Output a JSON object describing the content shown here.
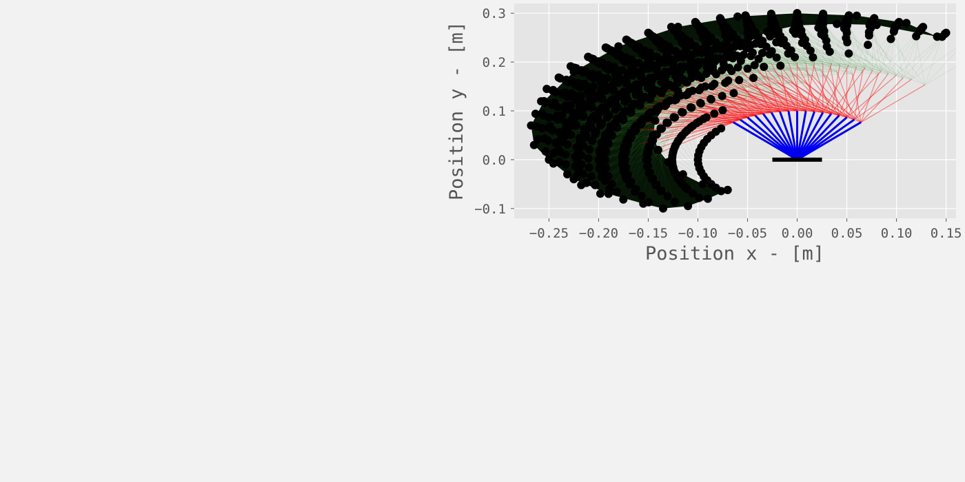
{
  "chart_data": {
    "type": "scatter",
    "title": "",
    "xlabel": "Position x - [m]",
    "ylabel": "Position y - [m]",
    "xlim": [
      -0.285,
      0.16
    ],
    "ylim": [
      -0.12,
      0.32
    ],
    "xticks": [
      -0.25,
      -0.2,
      -0.15,
      -0.1,
      -0.05,
      0.0,
      0.05,
      0.1,
      0.15
    ],
    "xtick_labels": [
      "−0.25",
      "−0.20",
      "−0.15",
      "−0.10",
      "−0.05",
      "0.00",
      "0.05",
      "0.10",
      "0.15"
    ],
    "yticks": [
      -0.1,
      0.0,
      0.1,
      0.2,
      0.3
    ],
    "ytick_labels": [
      "−0.1",
      "0.0",
      "0.1",
      "0.2",
      "0.3"
    ],
    "grid": true,
    "legend": "none",
    "colors": {
      "background": "#e5e5e5",
      "grid": "#ffffff",
      "segment1": "#0000ee",
      "segment2": "#ff0000",
      "segment3": "#2e8b2e",
      "endpoints": "#000000",
      "base": "#000000"
    },
    "robot": {
      "base_x": [
        -0.025,
        0.025
      ],
      "base_y": 0.0,
      "link_lengths": [
        0.1,
        0.1,
        0.1
      ],
      "segment_colors": [
        "blue",
        "red",
        "green"
      ],
      "endpoint_marker": "black circle"
    },
    "workspace_outer_boundary": [
      [
        0.141,
        0.252
      ],
      [
        0.11,
        0.28
      ],
      [
        0.06,
        0.295
      ],
      [
        0.0,
        0.3
      ],
      [
        -0.06,
        0.293
      ],
      [
        -0.12,
        0.272
      ],
      [
        -0.18,
        0.232
      ],
      [
        -0.225,
        0.18
      ],
      [
        -0.255,
        0.12
      ],
      [
        -0.268,
        0.07
      ],
      [
        -0.265,
        0.03
      ],
      [
        -0.25,
        0.0
      ],
      [
        -0.225,
        -0.04
      ],
      [
        -0.19,
        -0.07
      ],
      [
        -0.155,
        -0.09
      ],
      [
        -0.135,
        -0.1
      ],
      [
        -0.11,
        -0.095
      ],
      [
        -0.09,
        -0.08
      ],
      [
        -0.07,
        -0.062
      ]
    ],
    "workspace_inner_boundary": [
      [
        -0.07,
        -0.062
      ],
      [
        -0.095,
        -0.05
      ],
      [
        -0.115,
        -0.03
      ],
      [
        -0.13,
        -0.005
      ],
      [
        -0.14,
        0.02
      ],
      [
        -0.145,
        0.05
      ],
      [
        -0.143,
        0.08
      ],
      [
        -0.133,
        0.11
      ],
      [
        -0.12,
        0.14
      ],
      [
        -0.1,
        0.17
      ],
      [
        -0.085,
        0.19
      ],
      [
        -0.07,
        0.21
      ],
      [
        -0.05,
        0.24
      ],
      [
        -0.03,
        0.262
      ],
      [
        0.0,
        0.275
      ],
      [
        0.04,
        0.278
      ],
      [
        0.08,
        0.276
      ],
      [
        0.141,
        0.252
      ]
    ]
  }
}
